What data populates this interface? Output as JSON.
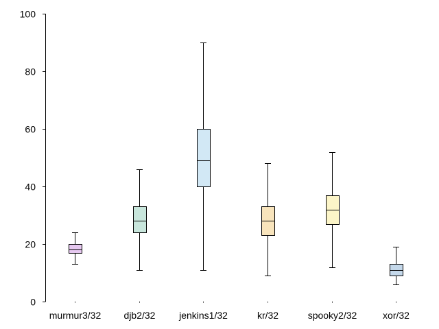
{
  "chart_data": {
    "type": "boxplot",
    "title": "",
    "xlabel": "",
    "ylabel": "",
    "ylim": [
      0,
      100
    ],
    "yticks": [
      0,
      20,
      40,
      60,
      80,
      100
    ],
    "grid": false,
    "legend": "none",
    "categories": [
      "murmur3/32",
      "djb2/32",
      "jenkins1/32",
      "kr/32",
      "spooky2/32",
      "xor/32"
    ],
    "boxes": [
      {
        "category": "murmur3/32",
        "min": 13,
        "q1": 17,
        "median": 18,
        "q3": 20,
        "max": 24,
        "color": "#e6c8f0"
      },
      {
        "category": "djb2/32",
        "min": 11,
        "q1": 24,
        "median": 28,
        "q3": 33,
        "max": 46,
        "color": "#c8e6dc"
      },
      {
        "category": "jenkins1/32",
        "min": 11,
        "q1": 40,
        "median": 49,
        "q3": 60,
        "max": 90,
        "color": "#d2e8f5"
      },
      {
        "category": "kr/32",
        "min": 9,
        "q1": 23,
        "median": 28,
        "q3": 33,
        "max": 48,
        "color": "#f8e4bc"
      },
      {
        "category": "spooky2/32",
        "min": 12,
        "q1": 27,
        "median": 32,
        "q3": 37,
        "max": 52,
        "color": "#fcf5c8"
      },
      {
        "category": "xor/32",
        "min": 6,
        "q1": 9,
        "median": 11,
        "q3": 13,
        "max": 19,
        "color": "#c4d8ea"
      }
    ]
  }
}
